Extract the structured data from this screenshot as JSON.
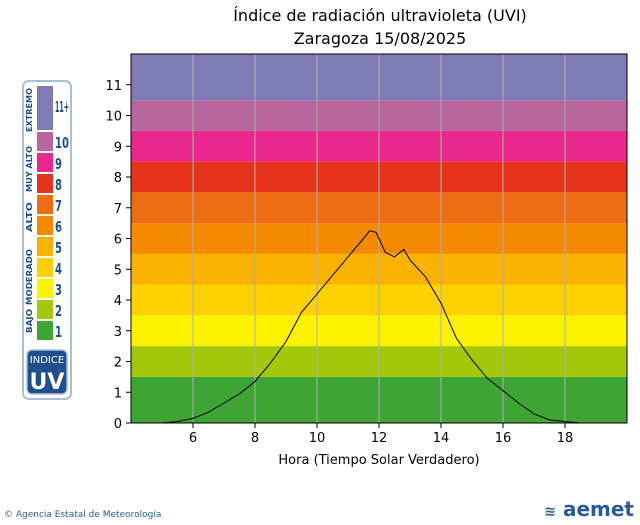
{
  "chart_data": {
    "type": "line",
    "title": "Índice de radiación ultravioleta (UVI)",
    "subtitle": "Zaragoza 15/08/2025",
    "xlabel": "Hora (Tiempo Solar Verdadero)",
    "ylabel": "",
    "xlim": [
      4,
      20
    ],
    "ylim": [
      0,
      12
    ],
    "xticks": [
      6,
      8,
      10,
      12,
      14,
      16,
      18
    ],
    "yticks": [
      0,
      1,
      2,
      3,
      4,
      5,
      6,
      7,
      8,
      9,
      10,
      11
    ],
    "grid": "vertical",
    "bands": [
      {
        "from": 0,
        "to": 1.5,
        "color": "#3ea535"
      },
      {
        "from": 1.5,
        "to": 2.5,
        "color": "#a4c60b"
      },
      {
        "from": 2.5,
        "to": 3.5,
        "color": "#fbf200"
      },
      {
        "from": 3.5,
        "to": 4.5,
        "color": "#fdd000"
      },
      {
        "from": 4.5,
        "to": 5.5,
        "color": "#f9b200"
      },
      {
        "from": 5.5,
        "to": 6.5,
        "color": "#f48a00"
      },
      {
        "from": 6.5,
        "to": 7.5,
        "color": "#ee6c12"
      },
      {
        "from": 7.5,
        "to": 8.5,
        "color": "#e6331b"
      },
      {
        "from": 8.5,
        "to": 9.5,
        "color": "#e8288c"
      },
      {
        "from": 9.5,
        "to": 10.5,
        "color": "#b8669d"
      },
      {
        "from": 10.5,
        "to": 12,
        "color": "#7f7cb5"
      }
    ],
    "series": [
      {
        "color": "#000000",
        "x": [
          4.0,
          5.0,
          5.5,
          6.0,
          6.5,
          7.0,
          7.5,
          8.0,
          8.5,
          9.0,
          9.5,
          10.0,
          10.5,
          11.0,
          11.5,
          11.7,
          11.9,
          12.0,
          12.2,
          12.5,
          12.8,
          13.0,
          13.5,
          14.0,
          14.5,
          15.0,
          15.5,
          16.0,
          16.5,
          17.0,
          17.5,
          18.0,
          18.5,
          19.0,
          20.0
        ],
        "y": [
          0.0,
          0.0,
          0.05,
          0.15,
          0.35,
          0.65,
          0.95,
          1.35,
          1.95,
          2.65,
          3.6,
          4.2,
          4.8,
          5.4,
          6.0,
          6.25,
          6.2,
          6.0,
          5.55,
          5.4,
          5.65,
          5.3,
          4.75,
          3.9,
          2.75,
          2.05,
          1.45,
          1.05,
          0.65,
          0.3,
          0.1,
          0.05,
          0.0,
          0.0,
          0.0
        ]
      }
    ]
  },
  "legend": {
    "title": "INDICE",
    "uv": "UV",
    "levels": [
      {
        "value": "1",
        "color": "#3ea535"
      },
      {
        "value": "2",
        "color": "#a4c60b"
      },
      {
        "value": "3",
        "color": "#fbf200"
      },
      {
        "value": "4",
        "color": "#fdd000"
      },
      {
        "value": "5",
        "color": "#f9b200"
      },
      {
        "value": "6",
        "color": "#f48a00"
      },
      {
        "value": "7",
        "color": "#ee6c12"
      },
      {
        "value": "8",
        "color": "#e6331b"
      },
      {
        "value": "9",
        "color": "#e8288c"
      },
      {
        "value": "10",
        "color": "#b8669d"
      },
      {
        "value": "11+",
        "color": "#7f7cb5"
      }
    ],
    "categories": [
      "BAJO",
      "MODERADO",
      "ALTO",
      "MUY ALTO",
      "EXTREMO"
    ]
  },
  "footer": {
    "agency": "Agencia Estatal de Meteorología",
    "logo": "aemet"
  },
  "colors": {
    "brand": "#2a5a9b"
  }
}
